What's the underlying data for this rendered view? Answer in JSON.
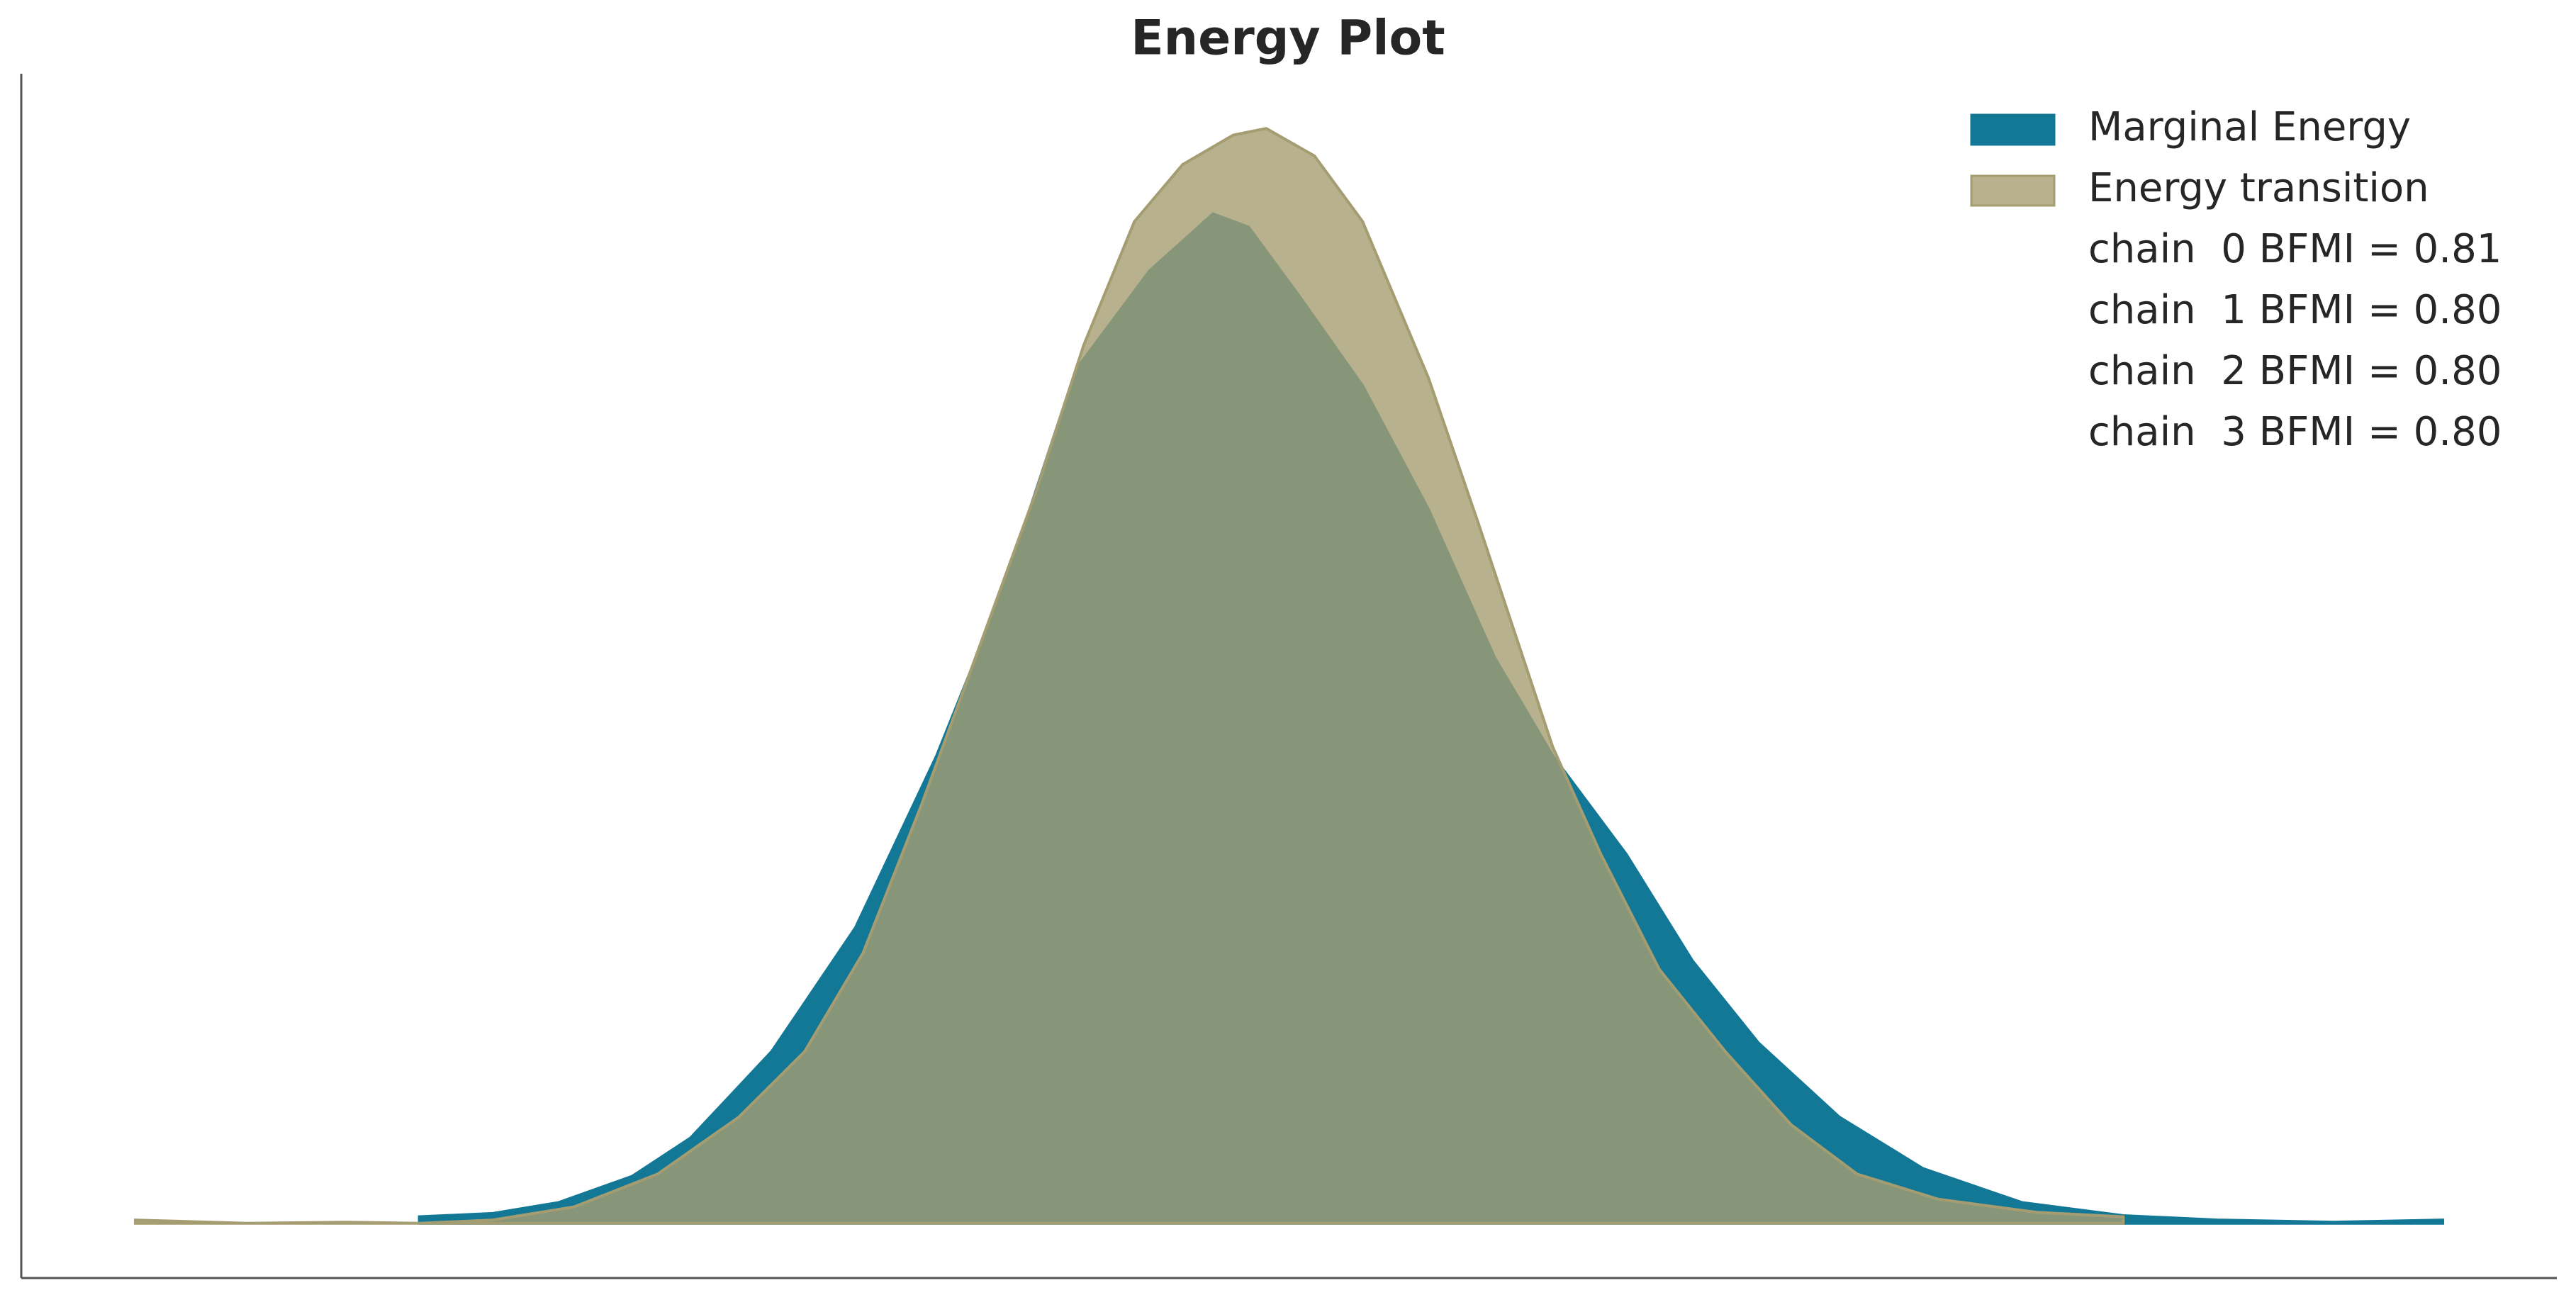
{
  "chart_data": {
    "type": "area",
    "title": "Energy Plot",
    "xlim": [
      0,
      100
    ],
    "ylim": [
      -5,
      105
    ],
    "series": [
      {
        "name": "Marginal Energy",
        "color": "#137796",
        "alpha": 1,
        "x": [
          15.7,
          18.6,
          21.2,
          24.1,
          26.4,
          29.6,
          32.9,
          36.1,
          38.7,
          41.6,
          44.5,
          47.0,
          48.4,
          50.4,
          52.9,
          55.5,
          58.1,
          60.4,
          63.3,
          65.9,
          68.5,
          71.7,
          75.0,
          78.9,
          82.9,
          86.6,
          91.2,
          95.5
        ],
        "values": [
          0.6,
          0.9,
          1.9,
          4.3,
          7.8,
          15.7,
          27.0,
          42.7,
          57.7,
          78.0,
          87.0,
          92.2,
          91.0,
          84.7,
          76.5,
          65.2,
          51.7,
          42.7,
          33.7,
          24.0,
          16.5,
          9.7,
          5.0,
          1.9,
          0.7,
          0.3,
          0.1,
          0.3
        ]
      },
      {
        "name": "Energy transition",
        "color": "#a59d72",
        "alpha": 0.8,
        "x": [
          4.5,
          8.9,
          12.8,
          15.7,
          18.6,
          21.8,
          25.1,
          28.3,
          30.9,
          33.2,
          35.5,
          38.0,
          40.0,
          41.9,
          43.9,
          45.8,
          47.8,
          49.1,
          51.0,
          52.9,
          55.5,
          57.5,
          60.4,
          62.3,
          64.6,
          67.2,
          69.8,
          72.4,
          75.6,
          79.5,
          82.9
        ],
        "values": [
          0.3,
          0,
          0.1,
          0,
          0.3,
          1.5,
          4.5,
          9.7,
          15.7,
          24.7,
          38.2,
          54.0,
          66.7,
          80.2,
          91.5,
          96.7,
          99.4,
          100,
          97.5,
          91.5,
          77.2,
          63.7,
          43.5,
          33.7,
          23.2,
          15.7,
          9.0,
          4.5,
          2.2,
          1.0,
          0.6
        ]
      }
    ],
    "legend_notes": [
      "chain  0 BFMI = 0.81",
      "chain  1 BFMI = 0.80",
      "chain  2 BFMI = 0.80",
      "chain  3 BFMI = 0.80"
    ],
    "legend": "upper right"
  }
}
